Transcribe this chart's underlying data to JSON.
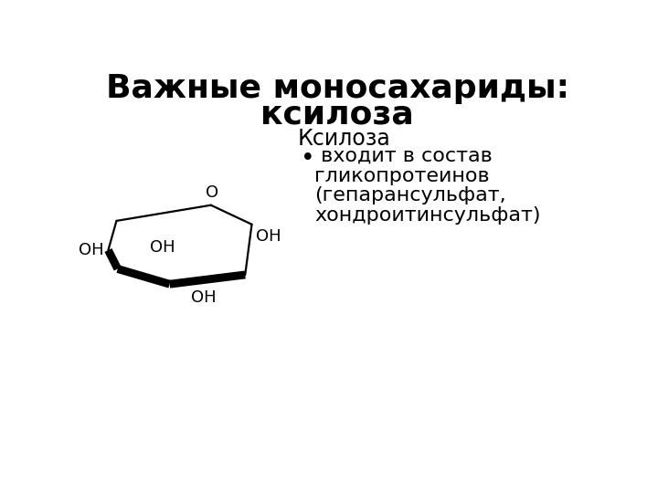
{
  "title_line1": "Важные моносахариды:",
  "title_line2": "ксилоза",
  "subtitle": "Ксилоза",
  "bullet_text_line1": " входит в состав",
  "bullet_text_line2": "гликопротеинов",
  "bullet_text_line3": "(гепарансульфат,",
  "bullet_text_line4": "хондроитинсульфат)",
  "background_color": "#ffffff",
  "text_color": "#000000",
  "title_fontsize": 26,
  "subtitle_fontsize": 17,
  "body_fontsize": 16,
  "ring_color": "#000000",
  "ring_linewidth": 1.6
}
